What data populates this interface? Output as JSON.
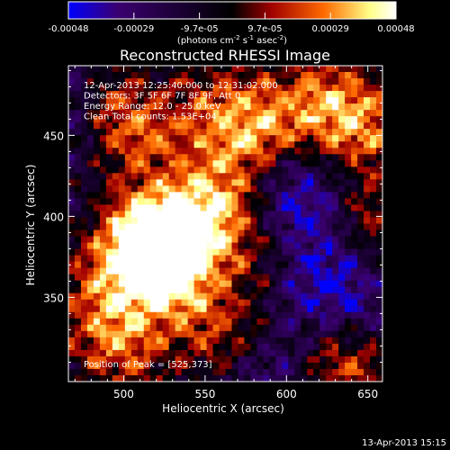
{
  "chart_data": {
    "type": "heatmap",
    "title": "Reconstructed RHESSI Image",
    "xlabel": "Heliocentric X (arcsec)",
    "ylabel": "Heliocentric Y (arcsec)",
    "xlim": [
      466,
      659
    ],
    "ylim": [
      298,
      493
    ],
    "xticks": [
      500,
      550,
      600,
      650
    ],
    "yticks": [
      350,
      400,
      450
    ],
    "colorbar": {
      "ticks": [
        "-0.00048",
        "-0.00029",
        "-9.7e-05",
        "9.7e-05",
        "0.00029",
        "0.00048"
      ],
      "range": [
        -0.00048,
        0.00048
      ],
      "unit_label": "(photons cm",
      "unit_sup1": "-2",
      "unit_mid": " s",
      "unit_sup2": "-1",
      "unit_mid2": " asec",
      "unit_sup3": "-2",
      "unit_end": ")",
      "colors": [
        "#0000ff",
        "#3a0070",
        "#000000",
        "#a00000",
        "#ff6a00",
        "#ffff88",
        "#ffffff"
      ]
    },
    "annotations": [
      "12-Apr-2013 12:25:40.000 to 12:31:02.000",
      "Detectors: 3F 5F 6F 7F 8F 9F, Att 0",
      "Energy Range: 12.0 - 25.0 keV",
      "Clean      Total counts: 1.53E+04"
    ],
    "peak_label": "Position of Peak = [525,373]",
    "peak": [
      525,
      373
    ],
    "blobs": [
      {
        "x": 525,
        "y": 373,
        "v": 1.0
      },
      {
        "x": 515,
        "y": 385,
        "v": 0.85
      },
      {
        "x": 555,
        "y": 405,
        "v": 0.75
      },
      {
        "x": 580,
        "y": 445,
        "v": 0.65
      },
      {
        "x": 620,
        "y": 470,
        "v": 0.6
      },
      {
        "x": 650,
        "y": 455,
        "v": 0.55
      },
      {
        "x": 490,
        "y": 470,
        "v": 0.5
      },
      {
        "x": 510,
        "y": 450,
        "v": 0.45
      },
      {
        "x": 650,
        "y": 395,
        "v": 0.5
      },
      {
        "x": 625,
        "y": 320,
        "v": 0.45
      },
      {
        "x": 560,
        "y": 330,
        "v": 0.5
      },
      {
        "x": 500,
        "y": 320,
        "v": 0.55
      },
      {
        "x": 590,
        "y": 380,
        "v": 0.35
      },
      {
        "x": 480,
        "y": 350,
        "v": 0.4
      },
      {
        "x": 640,
        "y": 300,
        "v": 0.4
      },
      {
        "x": 560,
        "y": 470,
        "v": 0.4
      }
    ],
    "voids": [
      {
        "x": 600,
        "y": 415,
        "v": 0.8
      },
      {
        "x": 630,
        "y": 345,
        "v": 0.7
      },
      {
        "x": 470,
        "y": 470,
        "v": 0.6
      },
      {
        "x": 595,
        "y": 305,
        "v": 0.5
      },
      {
        "x": 620,
        "y": 380,
        "v": 0.5
      }
    ]
  },
  "footer": {
    "timestamp": "13-Apr-2013 15:15"
  }
}
